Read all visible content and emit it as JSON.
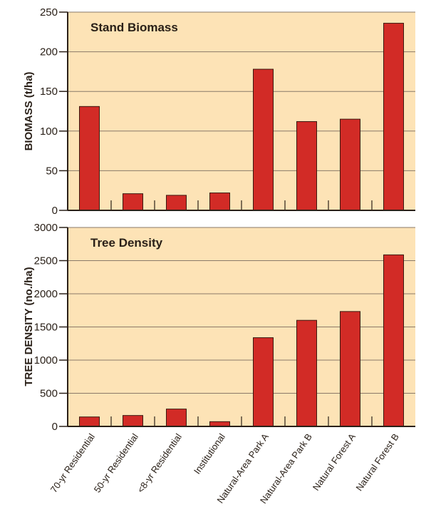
{
  "chart_data": [
    {
      "type": "bar",
      "title": "Stand Biomass",
      "ylabel": "Biomass (t/ha)",
      "xlabel": "",
      "ylim": [
        0,
        250
      ],
      "yticks": [
        0,
        50,
        100,
        150,
        200,
        250
      ],
      "categories": [
        "70-yr Residential",
        "50-yr Residential",
        "<8-yr Residential",
        "Institutional",
        "Natural-Area Park A",
        "Natural-Area Park B",
        "Natural Forest A",
        "Natural Forest B"
      ],
      "values": [
        131,
        21,
        19,
        22,
        178,
        112,
        115,
        236
      ],
      "grid": true
    },
    {
      "type": "bar",
      "title": "Tree Density",
      "ylabel": "Tree Density (no./ha)",
      "xlabel": "",
      "ylim": [
        0,
        3000
      ],
      "yticks": [
        0,
        500,
        1000,
        1500,
        2000,
        2500,
        3000
      ],
      "categories": [
        "70-yr Residential",
        "50-yr Residential",
        "<8-yr Residential",
        "Institutional",
        "Natural-Area Park A",
        "Natural-Area Park B",
        "Natural Forest A",
        "Natural Forest B"
      ],
      "values": [
        143,
        165,
        262,
        72,
        1338,
        1600,
        1733,
        2587
      ],
      "grid": true
    }
  ],
  "colors": {
    "bar": "#d22b26",
    "bar_outline": "#3a1a10",
    "plot_bg": "#fde3b6",
    "grid": "#8a7a68",
    "axis": "#2a2018"
  }
}
